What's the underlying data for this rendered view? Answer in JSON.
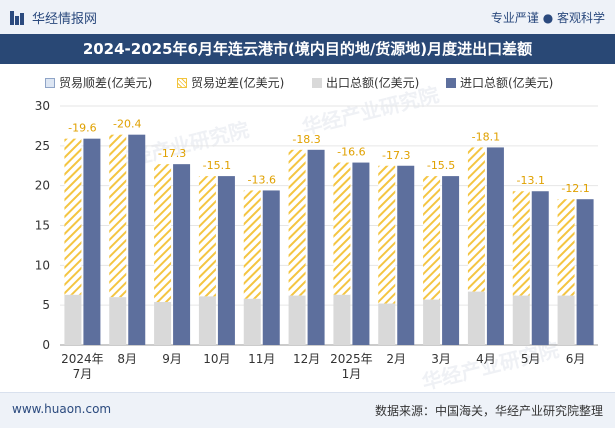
{
  "header": {
    "brand": "华经情报网",
    "tagline": "专业严谨 ● 客观科学"
  },
  "footer": {
    "website": "www.huaon.com",
    "source": "数据来源：中国海关，华经产业研究院整理"
  },
  "watermark": "华经产业研究院",
  "colors": {
    "export": "#d9d9d9",
    "import": "#5d6f9d",
    "deficit_hatch": "#f4c542",
    "deficit_label": "#e0a100",
    "title_bg": "#294875"
  },
  "chart_data": {
    "type": "bar",
    "title": "2024-2025年6月年连云港市(境内目的地/货源地)月度进出口差额",
    "legend": [
      "贸易顺差(亿美元)",
      "贸易逆差(亿美元)",
      "出口总额(亿美元)",
      "进口总额(亿美元)"
    ],
    "categories": [
      "2024年7月",
      "8月",
      "9月",
      "10月",
      "11月",
      "12月",
      "2025年1月",
      "2月",
      "3月",
      "4月",
      "5月",
      "6月"
    ],
    "category_lines": [
      [
        "2024年",
        "7月"
      ],
      [
        "8月"
      ],
      [
        "9月"
      ],
      [
        "10月"
      ],
      [
        "11月"
      ],
      [
        "12月"
      ],
      [
        "2025年",
        "1月"
      ],
      [
        "2月"
      ],
      [
        "3月"
      ],
      [
        "4月"
      ],
      [
        "5月"
      ],
      [
        "6月"
      ]
    ],
    "series": [
      {
        "name": "出口总额(亿美元)",
        "values": [
          6.3,
          6.0,
          5.4,
          6.1,
          5.8,
          6.2,
          6.3,
          5.2,
          5.7,
          6.7,
          6.2,
          6.2
        ]
      },
      {
        "name": "进口总额(亿美元)",
        "values": [
          25.9,
          26.4,
          22.7,
          21.2,
          19.4,
          24.5,
          22.9,
          22.5,
          21.2,
          24.8,
          19.3,
          18.3
        ]
      },
      {
        "name": "贸易逆差(亿美元)",
        "values": [
          19.6,
          20.4,
          17.3,
          15.1,
          13.6,
          18.3,
          16.6,
          17.3,
          15.5,
          18.1,
          13.1,
          12.1
        ]
      }
    ],
    "deficit_labels": [
      "-19.6",
      "-20.4",
      "-17.3",
      "-15.1",
      "-13.6",
      "-18.3",
      "-16.6",
      "-17.3",
      "-15.5",
      "-18.1",
      "-13.1",
      "-12.1"
    ],
    "yticks": [
      0,
      5,
      10,
      15,
      20,
      25,
      30
    ],
    "ylim": [
      0,
      30
    ],
    "xlabel": "",
    "ylabel": ""
  }
}
